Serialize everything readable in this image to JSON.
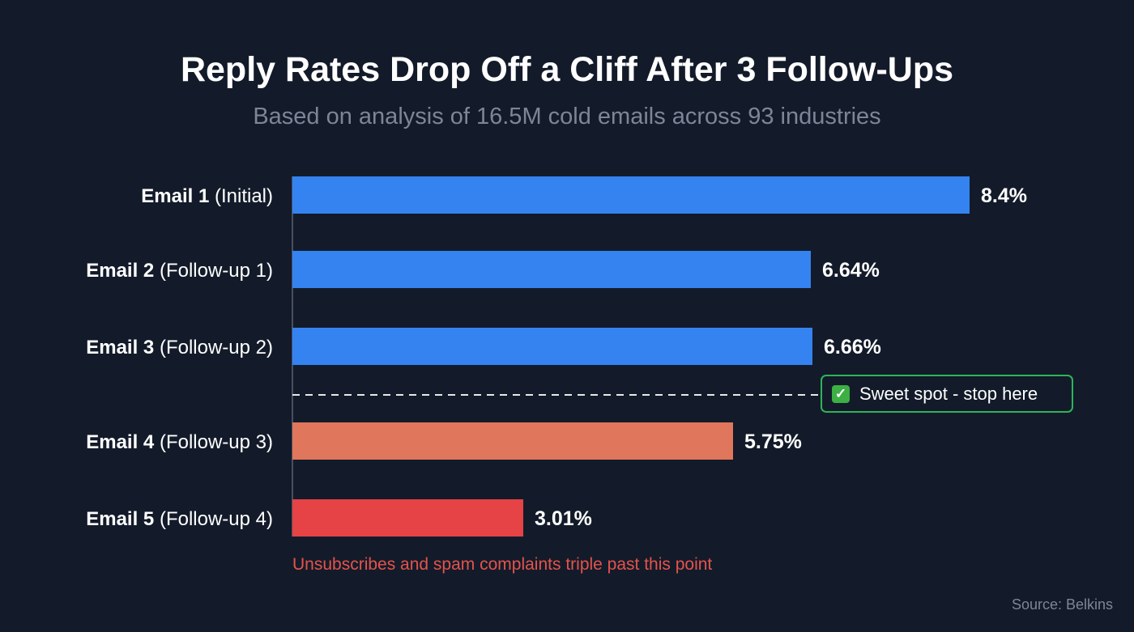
{
  "chart_data": {
    "type": "bar",
    "orientation": "horizontal",
    "title": "Reply Rates Drop Off a Cliff After 3 Follow-Ups",
    "subtitle": "Based on analysis of 16.5M cold emails across 93 industries",
    "categories": [
      {
        "bold": "Email 1",
        "rest": " (Initial)"
      },
      {
        "bold": "Email 2",
        "rest": " (Follow-up 1)"
      },
      {
        "bold": "Email 3",
        "rest": " (Follow-up 2)"
      },
      {
        "bold": "Email 4",
        "rest": " (Follow-up 3)"
      },
      {
        "bold": "Email 5",
        "rest": " (Follow-up 4)"
      }
    ],
    "values": [
      8.4,
      6.64,
      6.66,
      5.75,
      3.01
    ],
    "value_labels": [
      "8.4%",
      "6.64%",
      "6.66%",
      "5.75%",
      "3.01%"
    ],
    "colors": [
      "#3483f0",
      "#3483f0",
      "#3483f0",
      "#e0765c",
      "#e54345"
    ],
    "unit": "%",
    "grid": false,
    "annotation": {
      "text": "Sweet spot - stop here",
      "icon": "check-mark-icon",
      "position": "between Email 3 and Email 4",
      "color": "#2fb457"
    },
    "footnote": "Unsubscribes and spam complaints triple past this point",
    "footnote_color": "#e5534b",
    "source": "Source: Belkins"
  }
}
